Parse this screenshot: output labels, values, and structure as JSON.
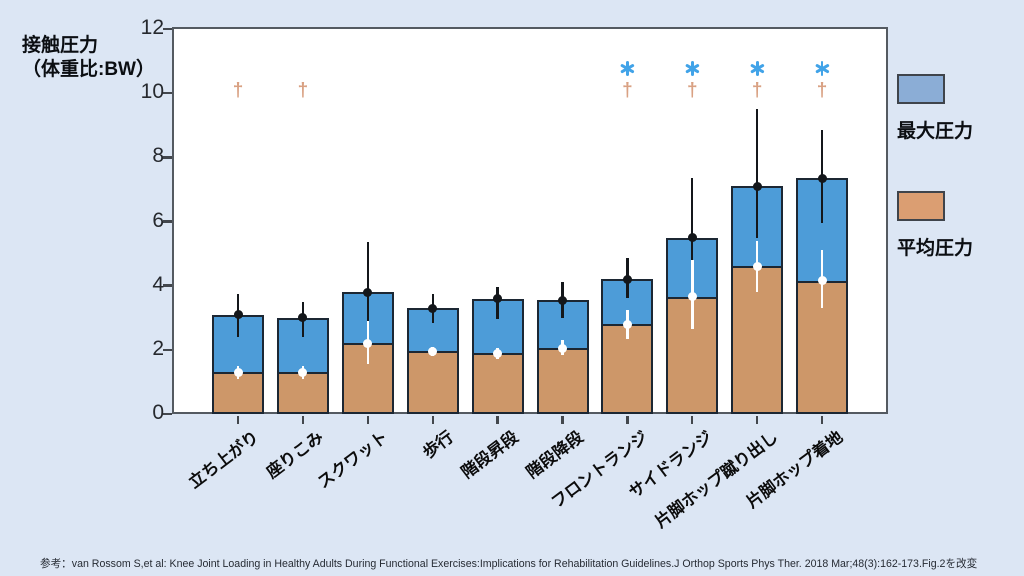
{
  "header": {
    "title_lines": [
      "接触圧力",
      "（体重比:BW）"
    ]
  },
  "legend": {
    "items": [
      {
        "label": "最大圧力",
        "color": "#8badd6"
      },
      {
        "label": "平均圧力",
        "color": "#db9e72"
      }
    ]
  },
  "footnote": "参考：van Rossom S,et al: Knee Joint Loading in Healthy Adults During Functional Exercises:Implications for Rehabilitation Guidelines.J Orthop Sports Phys Ther. 2018 Mar;48(3):162-173.Fig.2を改変",
  "chart_data": {
    "type": "bar",
    "title": "接触圧力（体重比:BW）",
    "ylabel": "接触圧力（体重比:BW）",
    "xlabel": "",
    "ylim": [
      0,
      12
    ],
    "yticks": [
      0,
      2,
      4,
      6,
      8,
      10,
      12
    ],
    "grid": false,
    "legend_position": "right",
    "categories": [
      "立ち上がり",
      "座りこみ",
      "スクワット",
      "歩行",
      "階段昇段",
      "階段降段",
      "フロントランジ",
      "サイドランジ",
      "片脚ホップ蹴り出し",
      "片脚ホップ着地"
    ],
    "series": [
      {
        "name": "最大圧力",
        "color": "#4d9cd8",
        "values": [
          3.1,
          3.0,
          3.8,
          3.3,
          3.6,
          3.55,
          4.2,
          5.5,
          7.1,
          7.35
        ],
        "error_low": [
          2.4,
          2.4,
          2.9,
          2.85,
          2.95,
          3.0,
          3.6,
          4.7,
          5.5,
          5.95
        ],
        "error_high": [
          3.75,
          3.5,
          5.35,
          3.75,
          3.95,
          4.1,
          4.85,
          7.35,
          9.5,
          8.85
        ]
      },
      {
        "name": "平均圧力",
        "color": "#cd9769",
        "values": [
          1.3,
          1.3,
          2.2,
          1.95,
          1.9,
          2.05,
          2.8,
          3.65,
          4.6,
          4.15
        ],
        "error_low": [
          1.1,
          1.1,
          1.55,
          1.8,
          1.7,
          1.85,
          2.35,
          2.65,
          3.8,
          3.3
        ],
        "error_high": [
          1.5,
          1.5,
          2.9,
          2.1,
          2.05,
          2.3,
          3.25,
          4.8,
          5.4,
          5.1
        ]
      }
    ],
    "annotations": {
      "dagger_symbol": "†",
      "dagger_color": "#d9a183",
      "dagger_bars": [
        "立ち上がり",
        "座りこみ",
        "フロントランジ",
        "サイドランジ",
        "片脚ホップ蹴り出し",
        "片脚ホップ着地"
      ],
      "asterisk_symbol": "✱",
      "asterisk_color": "#41a3e8",
      "asterisk_bars": [
        "フロントランジ",
        "サイドランジ",
        "片脚ホップ蹴り出し",
        "片脚ホップ着地"
      ]
    }
  }
}
